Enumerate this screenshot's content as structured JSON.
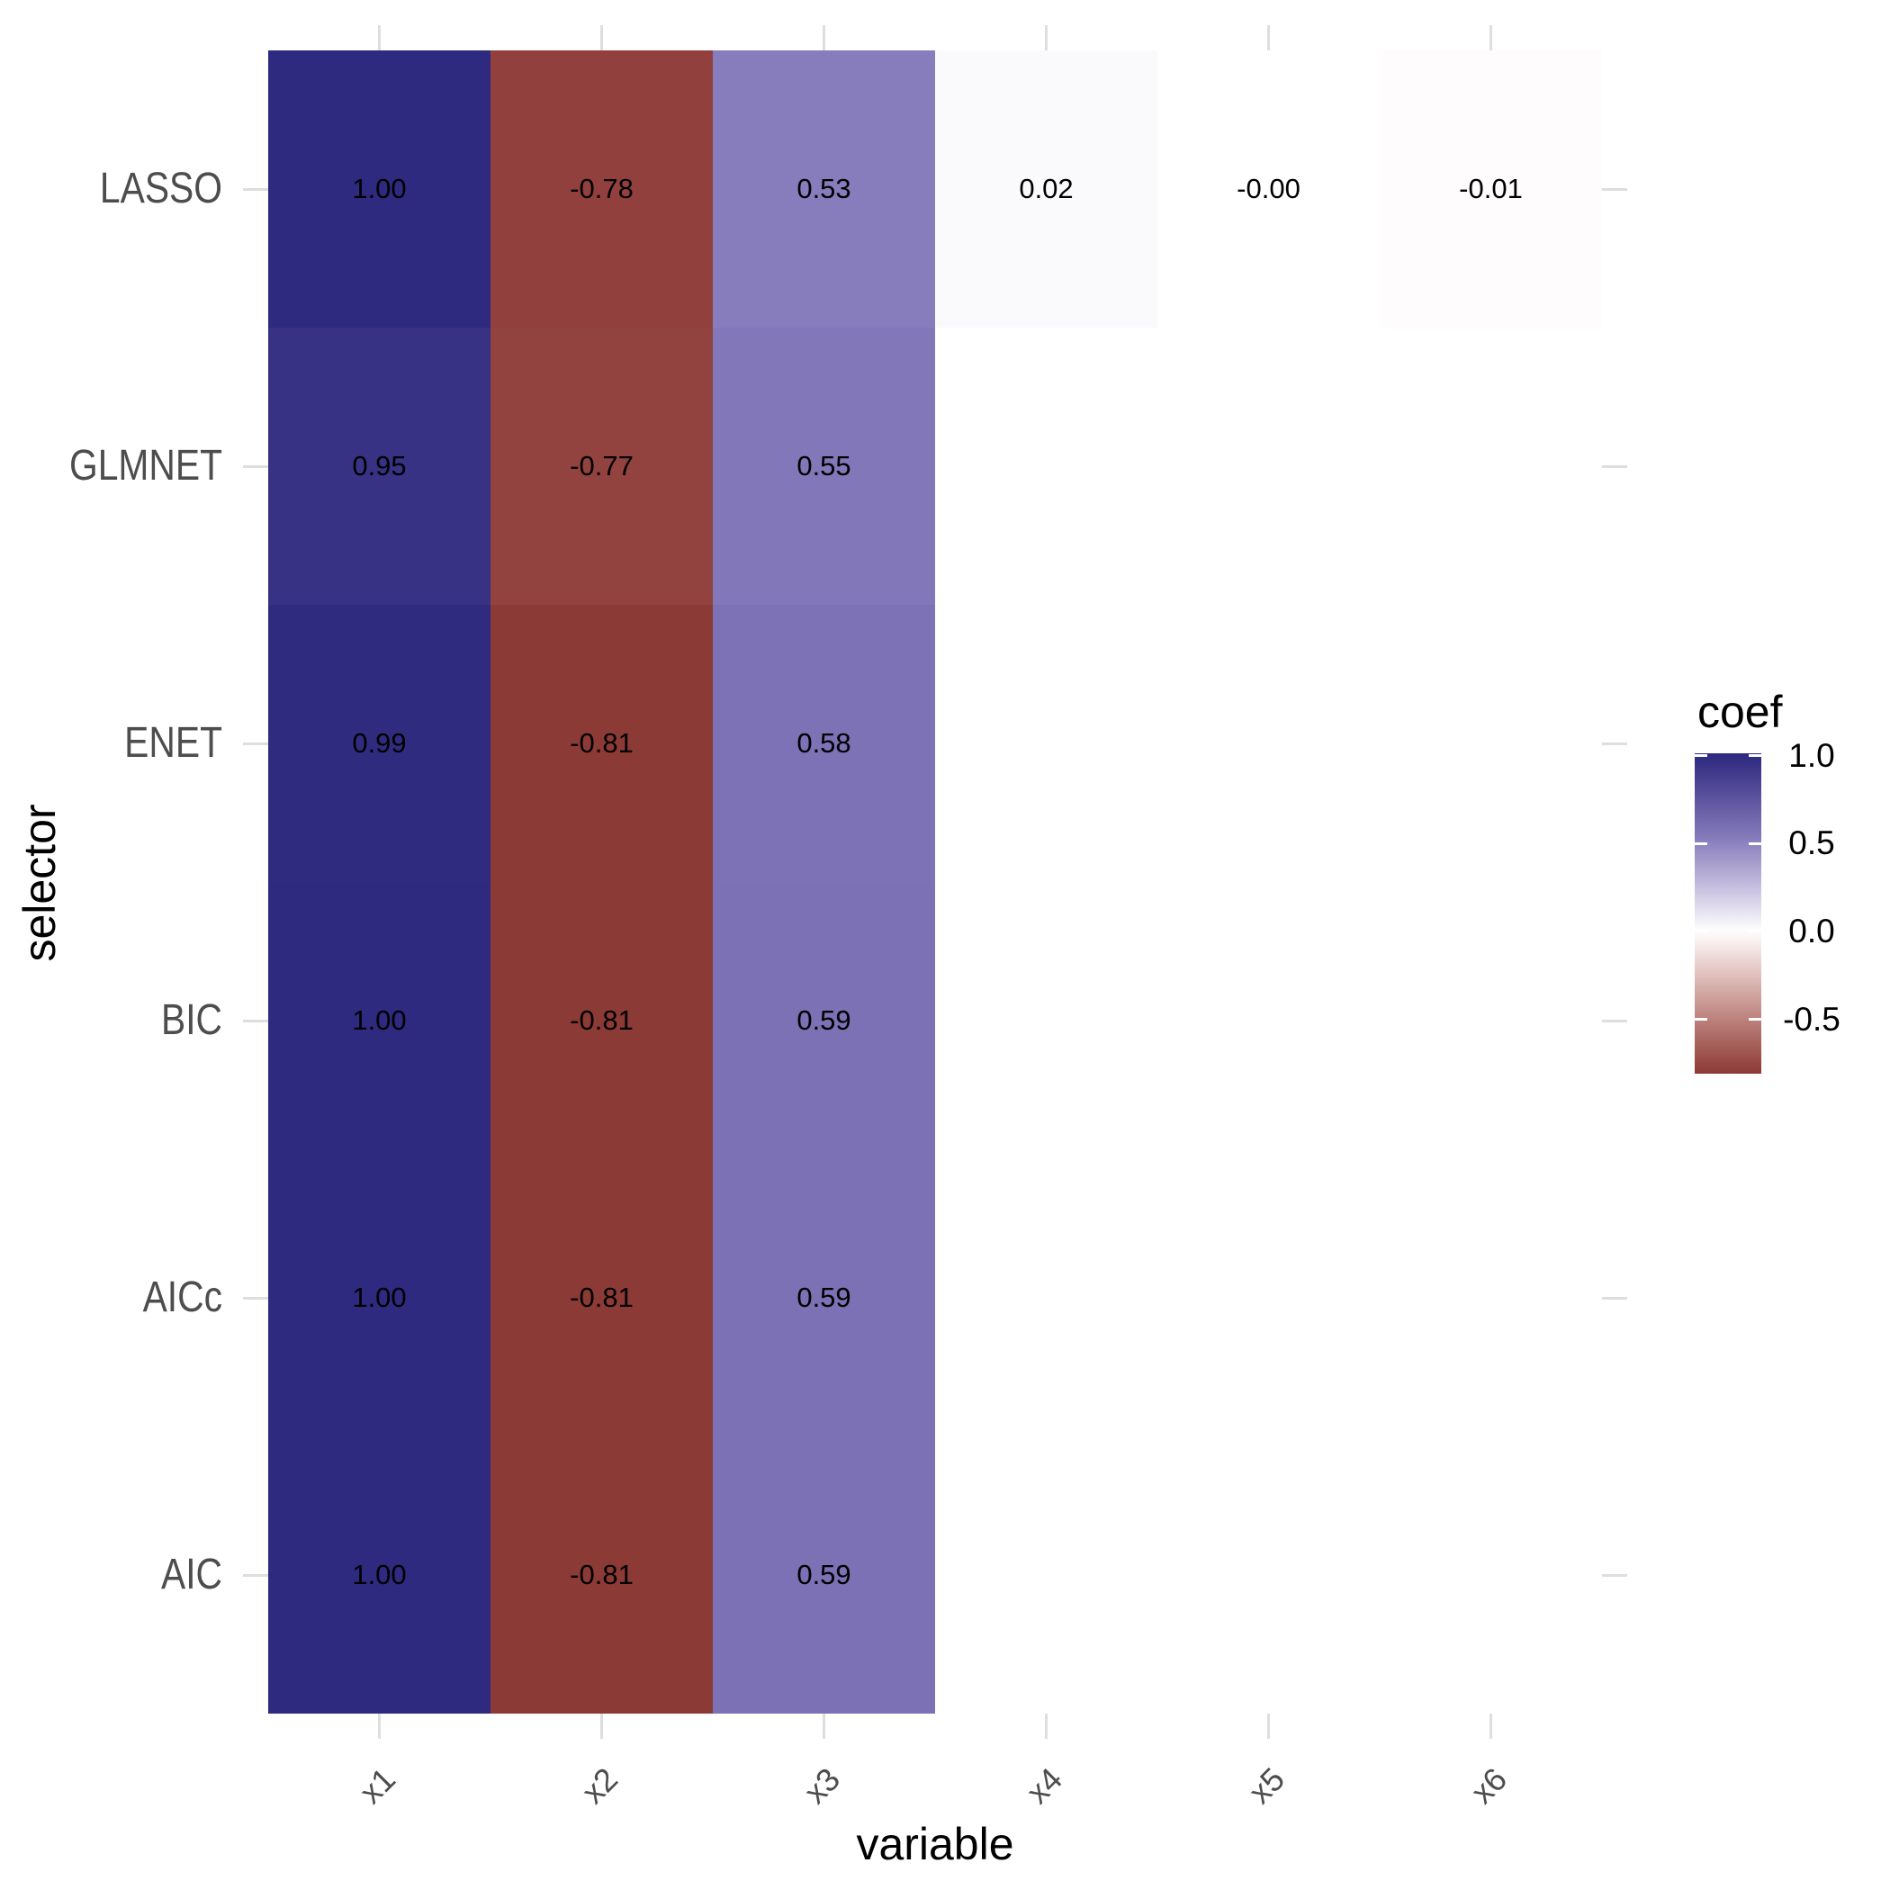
{
  "chart_data": {
    "type": "heatmap",
    "title": "",
    "xlabel": "variable",
    "ylabel": "selector",
    "x_categories": [
      "x1",
      "x2",
      "x3",
      "x4",
      "x5",
      "x6"
    ],
    "y_categories": [
      "LASSO",
      "GLMNET",
      "ENET",
      "BIC",
      "AICc",
      "AIC"
    ],
    "rows": [
      {
        "selector": "LASSO",
        "values": [
          1.0,
          -0.78,
          0.53,
          0.02,
          -0.0,
          -0.01
        ],
        "labels": [
          "1.00",
          "-0.78",
          "0.53",
          "0.02",
          "-0.00",
          "-0.01"
        ]
      },
      {
        "selector": "GLMNET",
        "values": [
          0.95,
          -0.77,
          0.55,
          null,
          null,
          null
        ],
        "labels": [
          "0.95",
          "-0.77",
          "0.55",
          "",
          "",
          ""
        ]
      },
      {
        "selector": "ENET",
        "values": [
          0.99,
          -0.81,
          0.58,
          null,
          null,
          null
        ],
        "labels": [
          "0.99",
          "-0.81",
          "0.58",
          "",
          "",
          ""
        ]
      },
      {
        "selector": "BIC",
        "values": [
          1.0,
          -0.81,
          0.59,
          null,
          null,
          null
        ],
        "labels": [
          "1.00",
          "-0.81",
          "0.59",
          "",
          "",
          ""
        ]
      },
      {
        "selector": "AICc",
        "values": [
          1.0,
          -0.81,
          0.59,
          null,
          null,
          null
        ],
        "labels": [
          "1.00",
          "-0.81",
          "0.59",
          "",
          "",
          ""
        ]
      },
      {
        "selector": "AIC",
        "values": [
          1.0,
          -0.81,
          0.59,
          null,
          null,
          null
        ],
        "labels": [
          "1.00",
          "-0.81",
          "0.59",
          "",
          "",
          ""
        ]
      }
    ],
    "legend": {
      "title": "coef",
      "tick_labels": [
        "1.0",
        "0.5",
        "0.0",
        "-0.5"
      ],
      "tick_values": [
        1.0,
        0.5,
        0.0,
        -0.5
      ],
      "limits": [
        -0.81,
        1.0
      ]
    },
    "color_scale": {
      "mid": "#FFFFFF",
      "positive_stops": [
        [
          0.0,
          "#FFFFFF"
        ],
        [
          0.55,
          "#8278B9"
        ],
        [
          1.0,
          "#2D2A7F"
        ]
      ],
      "negative_stops": [
        [
          0.0,
          "#FFFFFF"
        ],
        [
          0.77,
          "#92423F"
        ],
        [
          0.81,
          "#8C3A36"
        ]
      ],
      "midpoint": 0
    },
    "axis_text_color": "#4D4D4D",
    "grid": false,
    "legend_position": "right"
  }
}
